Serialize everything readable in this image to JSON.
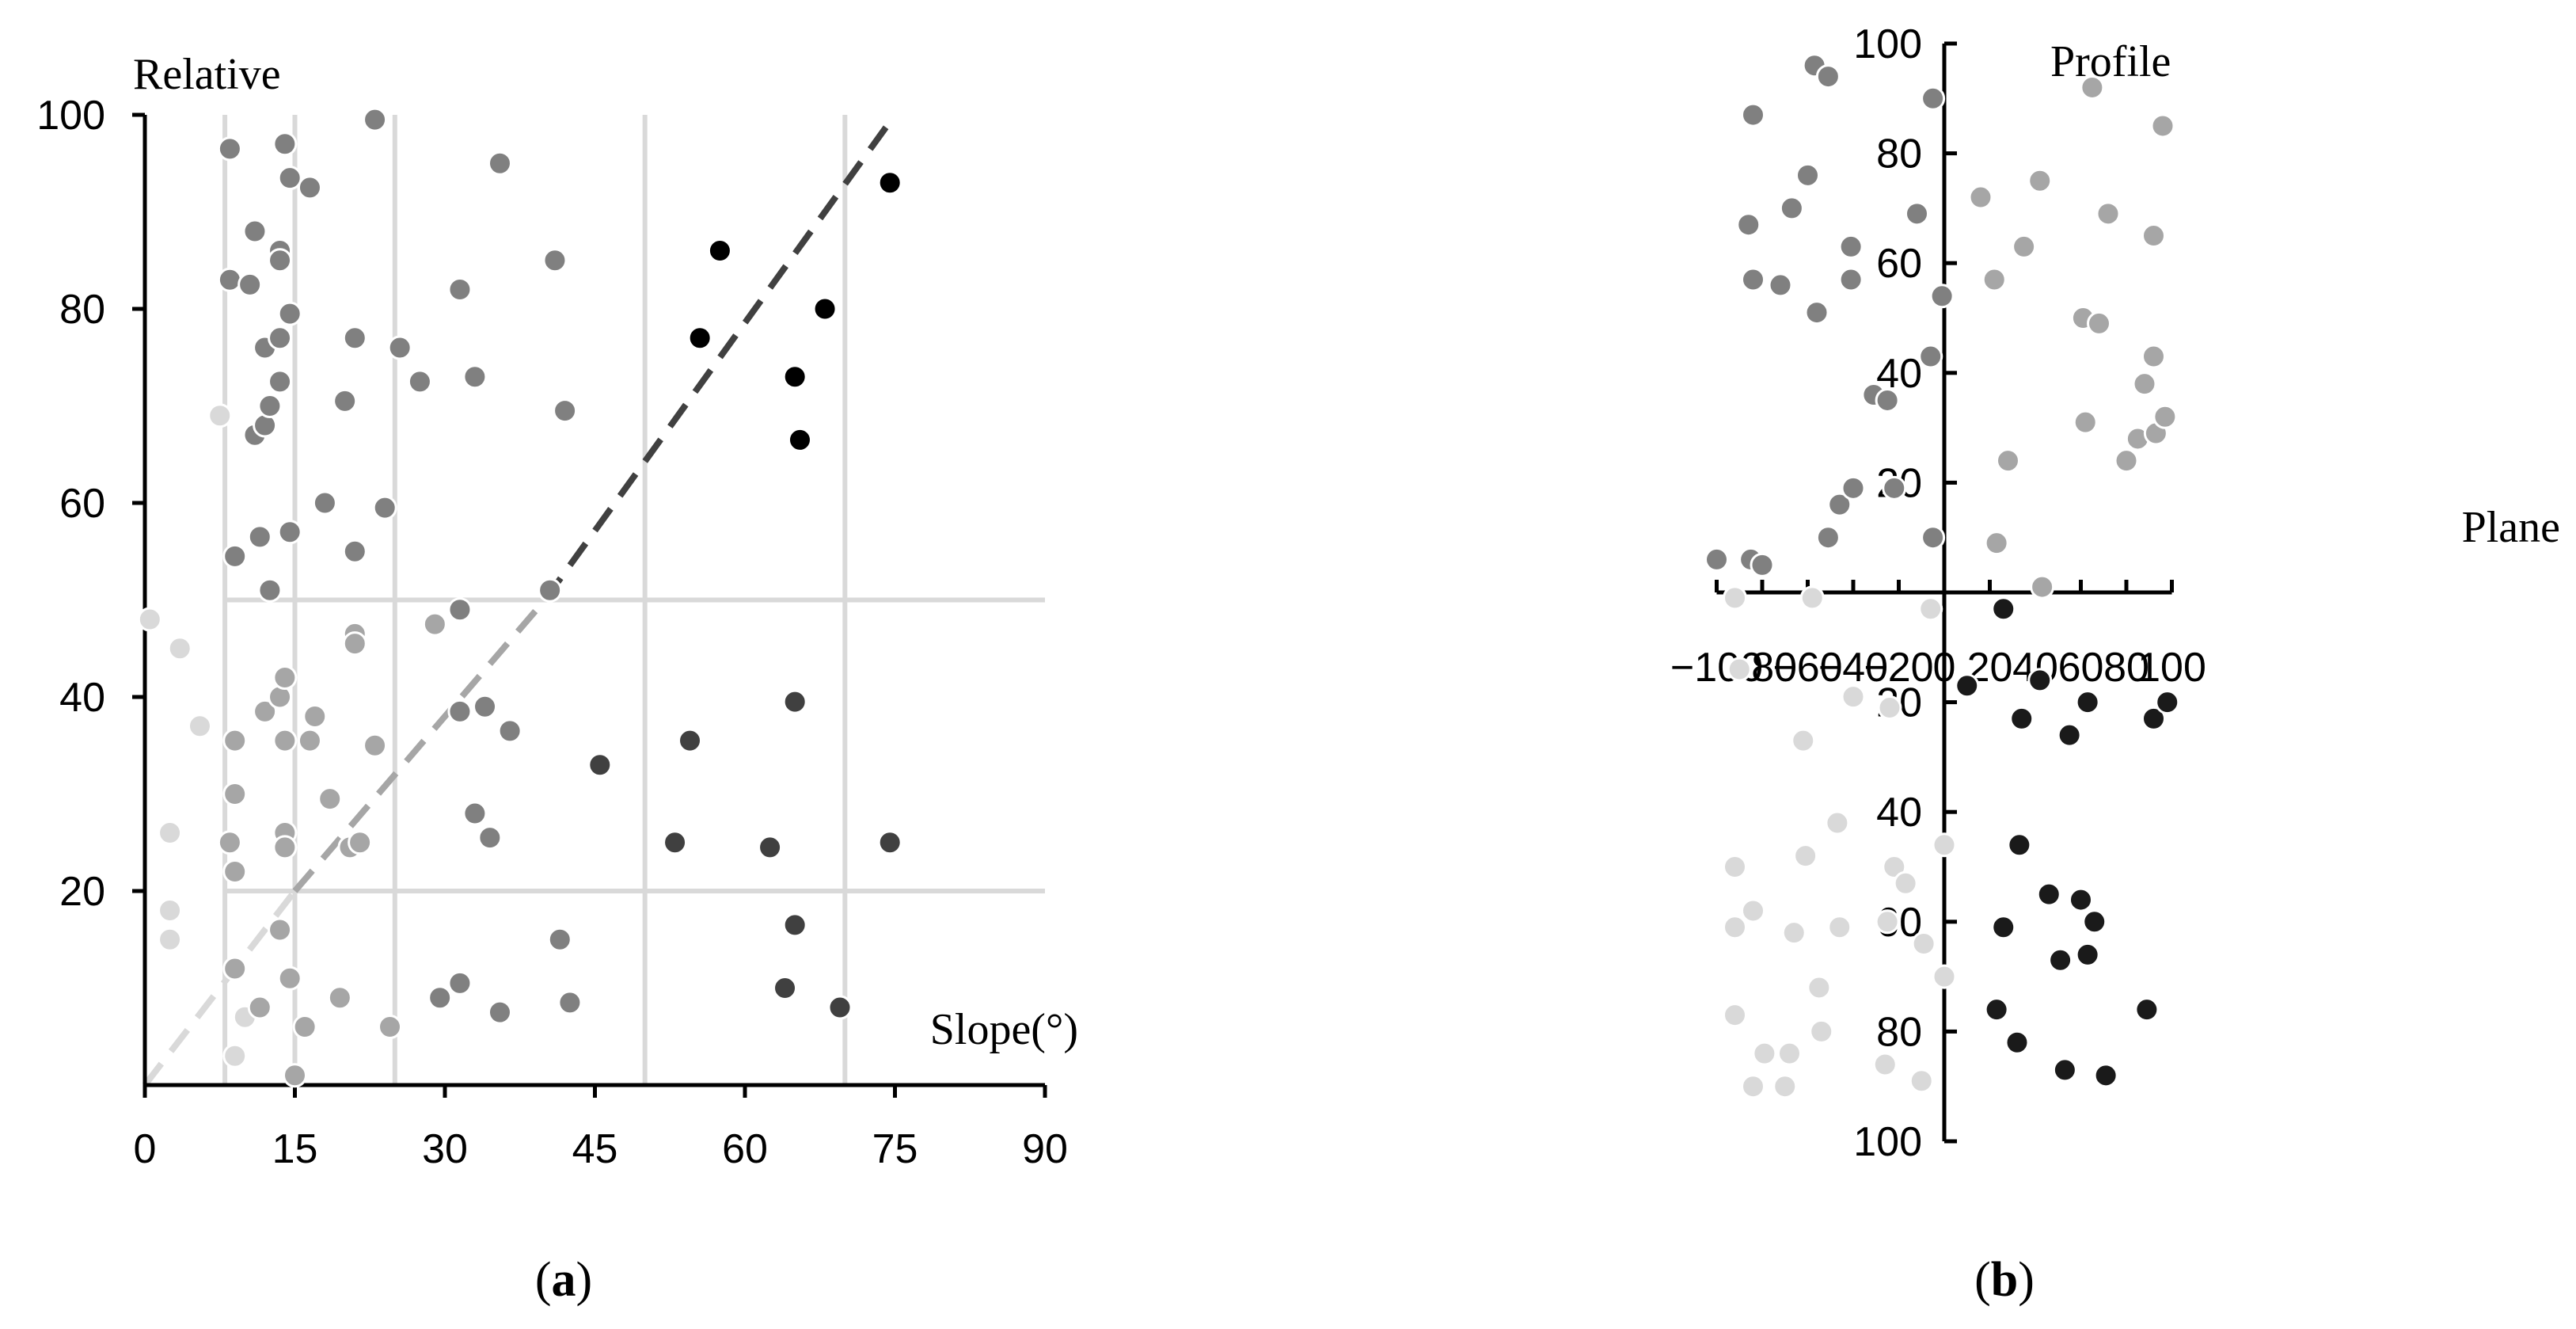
{
  "chart_data": [
    {
      "type": "scatter",
      "panel_label": [
        "(",
        "a",
        ")"
      ],
      "xlabel": "Slope(°)",
      "ylabel": "Relative",
      "xlim": [
        0,
        90
      ],
      "ylim": [
        0,
        100
      ],
      "x_ticks": [
        0,
        15,
        30,
        45,
        60,
        75,
        90
      ],
      "y_ticks": [
        20,
        40,
        60,
        80,
        100
      ],
      "grid": {
        "vertical_x": [
          8,
          15,
          25,
          50,
          70
        ],
        "horizontal_y": [
          20,
          50
        ],
        "color": "#d9d9d9"
      },
      "reference_lines": [
        {
          "from": [
            0,
            0
          ],
          "to": [
            15,
            20
          ],
          "color": "#d9d9d9"
        },
        {
          "from": [
            15,
            20
          ],
          "to": [
            40,
            50
          ],
          "color": "#a6a6a6"
        },
        {
          "from": [
            40,
            50
          ],
          "to": [
            75,
            100
          ],
          "color": "#404040"
        }
      ],
      "series": [
        {
          "color": "#d9d9d9",
          "points": [
            [
              0.5,
              48
            ],
            [
              3.5,
              45
            ],
            [
              5.5,
              37
            ],
            [
              2.5,
              26
            ],
            [
              2.5,
              18
            ],
            [
              2.5,
              15
            ],
            [
              7.5,
              69
            ],
            [
              9,
              3
            ],
            [
              10,
              7
            ]
          ]
        },
        {
          "color": "#a6a6a6",
          "points": [
            [
              8.5,
              25
            ],
            [
              9,
              35.5
            ],
            [
              9,
              30
            ],
            [
              9,
              22
            ],
            [
              9,
              12
            ],
            [
              11.5,
              8
            ],
            [
              12,
              38.5
            ],
            [
              13.5,
              40
            ],
            [
              14,
              42
            ],
            [
              14,
              35.5
            ],
            [
              14,
              26
            ],
            [
              14,
              24.5
            ],
            [
              13.5,
              16
            ],
            [
              14.5,
              11
            ],
            [
              15,
              1
            ],
            [
              16,
              6
            ],
            [
              16.5,
              35.5
            ],
            [
              17,
              38
            ],
            [
              18.5,
              29.5
            ],
            [
              19.5,
              9
            ],
            [
              20.5,
              24.5
            ],
            [
              21.5,
              25
            ],
            [
              21,
              46.5
            ],
            [
              21,
              45.5
            ],
            [
              23,
              35
            ],
            [
              24.5,
              6
            ],
            [
              29,
              47.5
            ]
          ]
        },
        {
          "color": "#808080",
          "points": [
            [
              8.5,
              96.5
            ],
            [
              8.5,
              83
            ],
            [
              9,
              54.5
            ],
            [
              10.5,
              82.5
            ],
            [
              11,
              88
            ],
            [
              11,
              67
            ],
            [
              11.5,
              56.5
            ],
            [
              12,
              68
            ],
            [
              12,
              76
            ],
            [
              12.5,
              51
            ],
            [
              12.5,
              70
            ],
            [
              13.5,
              72.5
            ],
            [
              13.5,
              77
            ],
            [
              13.5,
              86
            ],
            [
              13.5,
              85
            ],
            [
              14,
              97
            ],
            [
              14.5,
              93.5
            ],
            [
              14.5,
              57
            ],
            [
              14.5,
              79.5
            ],
            [
              16.5,
              92.5
            ],
            [
              18,
              60
            ],
            [
              20,
              70.5
            ],
            [
              21,
              77
            ],
            [
              21,
              55
            ],
            [
              23,
              99.5
            ],
            [
              25.5,
              76
            ],
            [
              27.5,
              72.5
            ],
            [
              24,
              59.5
            ],
            [
              31.5,
              82
            ],
            [
              31.5,
              49
            ],
            [
              31.5,
              38.5
            ],
            [
              33,
              73
            ],
            [
              33,
              28
            ],
            [
              34,
              39
            ],
            [
              34.5,
              25.5
            ],
            [
              35.5,
              7.5
            ],
            [
              35.5,
              95
            ],
            [
              36.5,
              36.5
            ],
            [
              31.5,
              10.5
            ],
            [
              29.5,
              9
            ],
            [
              40.5,
              51
            ],
            [
              41,
              85
            ],
            [
              42,
              69.5
            ],
            [
              41.5,
              15
            ],
            [
              42.5,
              8.5
            ]
          ]
        },
        {
          "color": "#404040",
          "points": [
            [
              45.5,
              33
            ],
            [
              53,
              25
            ],
            [
              54.5,
              35.5
            ],
            [
              62.5,
              24.5
            ],
            [
              64,
              10
            ],
            [
              65,
              39.5
            ],
            [
              65,
              16.5
            ],
            [
              69.5,
              8
            ],
            [
              74.5,
              25
            ]
          ]
        },
        {
          "color": "#000000",
          "points": [
            [
              55.5,
              77
            ],
            [
              57.5,
              86
            ],
            [
              65,
              73
            ],
            [
              65.5,
              66.5
            ],
            [
              68,
              80
            ],
            [
              74.5,
              93
            ]
          ]
        }
      ]
    },
    {
      "type": "scatter",
      "panel_label": [
        "(",
        "b",
        ")"
      ],
      "xlabel": "Plane",
      "ylabel": "Profile",
      "xlim": [
        -100,
        100
      ],
      "ylim": [
        -100,
        100
      ],
      "x_ticks": [
        -100,
        -80,
        -60,
        -40,
        -20,
        0,
        20,
        40,
        60,
        80,
        100
      ],
      "y_ticks": [
        100,
        80,
        60,
        40,
        20,
        -20,
        -40,
        -60,
        -80,
        -100
      ],
      "series": [
        {
          "color": "#808080",
          "points": [
            [
              -100,
              6
            ],
            [
              -85,
              6
            ],
            [
              -80,
              5
            ],
            [
              -86,
              67
            ],
            [
              -84,
              87
            ],
            [
              -84,
              57
            ],
            [
              -72,
              56
            ],
            [
              -67,
              70
            ],
            [
              -60,
              76
            ],
            [
              -57,
              96
            ],
            [
              -56,
              51
            ],
            [
              -51,
              94
            ],
            [
              -51,
              10
            ],
            [
              -46,
              16
            ],
            [
              -41,
              63
            ],
            [
              -41,
              57
            ],
            [
              -40,
              19
            ],
            [
              -31,
              36
            ],
            [
              -25,
              35
            ],
            [
              -22,
              19
            ],
            [
              -12,
              69
            ],
            [
              -6,
              43
            ],
            [
              -5,
              10
            ],
            [
              -5,
              90
            ],
            [
              -1,
              54
            ]
          ]
        },
        {
          "color": "#a6a6a6",
          "points": [
            [
              16,
              72
            ],
            [
              22,
              57
            ],
            [
              23,
              9
            ],
            [
              28,
              24
            ],
            [
              35,
              63
            ],
            [
              42,
              75
            ],
            [
              43,
              1
            ],
            [
              61,
              50
            ],
            [
              62,
              31
            ],
            [
              65,
              92
            ],
            [
              68,
              49
            ],
            [
              72,
              69
            ],
            [
              80,
              24
            ],
            [
              85,
              28
            ],
            [
              88,
              38
            ],
            [
              92,
              43
            ],
            [
              92,
              65
            ],
            [
              93,
              29
            ],
            [
              96,
              85
            ],
            [
              97,
              32
            ]
          ]
        },
        {
          "color": "#d9d9d9",
          "points": [
            [
              -92,
              -1
            ],
            [
              -92,
              -50
            ],
            [
              -92,
              -61
            ],
            [
              -92,
              -77
            ],
            [
              -90,
              -14
            ],
            [
              -84,
              -90
            ],
            [
              -84,
              -58
            ],
            [
              -79,
              -84
            ],
            [
              -70,
              -90
            ],
            [
              -68,
              -84
            ],
            [
              -66,
              -62
            ],
            [
              -62,
              -27
            ],
            [
              -61,
              -48
            ],
            [
              -58,
              -1
            ],
            [
              -55,
              -72
            ],
            [
              -54,
              -80
            ],
            [
              -47,
              -42
            ],
            [
              -46,
              -61
            ],
            [
              -40,
              -19
            ],
            [
              -27,
              -86
            ],
            [
              -26,
              -86
            ],
            [
              -25,
              -60
            ],
            [
              -24,
              -21
            ],
            [
              -22,
              -50
            ],
            [
              -17,
              -53
            ],
            [
              -10,
              -89
            ],
            [
              -9,
              -64
            ],
            [
              -6,
              -3
            ],
            [
              0,
              -46
            ],
            [
              0,
              -70
            ]
          ]
        },
        {
          "color": "#1a1a1a",
          "points": [
            [
              10,
              -17
            ],
            [
              26,
              -3
            ],
            [
              23,
              -76
            ],
            [
              26,
              -61
            ],
            [
              32,
              -82
            ],
            [
              33,
              -46
            ],
            [
              34,
              -23
            ],
            [
              42,
              -16
            ],
            [
              46,
              -55
            ],
            [
              51,
              -67
            ],
            [
              53,
              -87
            ],
            [
              55,
              -26
            ],
            [
              60,
              -56
            ],
            [
              63,
              -20
            ],
            [
              63,
              -66
            ],
            [
              66,
              -60
            ],
            [
              71,
              -88
            ],
            [
              89,
              -76
            ],
            [
              92,
              -23
            ],
            [
              98,
              -20
            ]
          ]
        }
      ]
    }
  ]
}
